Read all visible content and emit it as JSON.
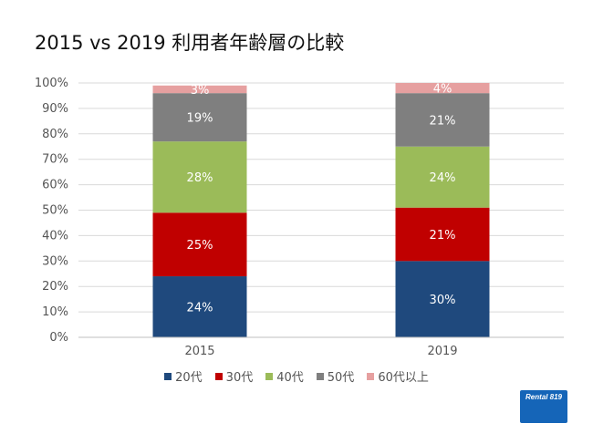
{
  "chart_data": {
    "type": "bar",
    "stacked": true,
    "title": "2015 vs 2019 利用者年齢層の比較",
    "categories": [
      "2015",
      "2019"
    ],
    "series": [
      {
        "name": "20代",
        "values": [
          24,
          30
        ],
        "color": "#1f497d"
      },
      {
        "name": "30代",
        "values": [
          25,
          21
        ],
        "color": "#c00000"
      },
      {
        "name": "40代",
        "values": [
          28,
          24
        ],
        "color": "#9bbb59"
      },
      {
        "name": "50代",
        "values": [
          19,
          21
        ],
        "color": "#7f7f7f"
      },
      {
        "name": "60代以上",
        "values": [
          3,
          4
        ],
        "color": "#e6a0a0"
      }
    ],
    "ylim": [
      0,
      100
    ],
    "yticks": [
      "0%",
      "10%",
      "20%",
      "30%",
      "40%",
      "50%",
      "60%",
      "70%",
      "80%",
      "90%",
      "100%"
    ],
    "xlabel": "",
    "ylabel": "",
    "legend_position": "bottom"
  },
  "logo": {
    "text": "Rental 819"
  }
}
